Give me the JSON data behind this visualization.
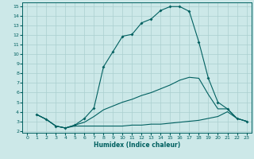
{
  "xlabel": "Humidex (Indice chaleur)",
  "bg_color": "#cce8e8",
  "grid_color": "#aacfcf",
  "line_color": "#006060",
  "xlim": [
    -0.5,
    23.5
  ],
  "ylim": [
    1.8,
    15.4
  ],
  "xticks": [
    0,
    1,
    2,
    3,
    4,
    5,
    6,
    7,
    8,
    9,
    10,
    11,
    12,
    13,
    14,
    15,
    16,
    17,
    18,
    19,
    20,
    21,
    22,
    23
  ],
  "yticks": [
    2,
    3,
    4,
    5,
    6,
    7,
    8,
    9,
    10,
    11,
    12,
    13,
    14,
    15
  ],
  "line1_x": [
    1,
    2,
    3,
    4,
    5,
    6,
    7,
    8,
    9,
    10,
    11,
    12,
    13,
    14,
    15,
    16,
    17,
    18,
    19,
    20,
    21,
    22,
    23
  ],
  "line1_y": [
    3.7,
    3.2,
    2.5,
    2.3,
    2.6,
    3.3,
    4.4,
    8.7,
    10.3,
    11.9,
    12.1,
    13.3,
    13.7,
    14.6,
    15.0,
    15.0,
    14.5,
    11.3,
    7.5,
    5.0,
    4.3,
    3.3,
    3.0
  ],
  "line2_x": [
    1,
    2,
    3,
    4,
    5,
    6,
    7,
    8,
    9,
    10,
    11,
    12,
    13,
    14,
    15,
    16,
    17,
    18,
    19,
    20,
    21,
    22,
    23
  ],
  "line2_y": [
    3.7,
    3.2,
    2.5,
    2.3,
    2.5,
    2.5,
    2.5,
    2.5,
    2.5,
    2.5,
    2.6,
    2.6,
    2.7,
    2.7,
    2.8,
    2.9,
    3.0,
    3.1,
    3.3,
    3.5,
    4.0,
    3.3,
    3.0
  ],
  "line3_x": [
    1,
    2,
    3,
    4,
    5,
    6,
    7,
    8,
    9,
    10,
    11,
    12,
    13,
    14,
    15,
    16,
    17,
    18,
    19,
    20,
    21,
    22,
    23
  ],
  "line3_y": [
    3.7,
    3.2,
    2.5,
    2.3,
    2.6,
    2.9,
    3.5,
    4.2,
    4.6,
    5.0,
    5.3,
    5.7,
    6.0,
    6.4,
    6.8,
    7.3,
    7.6,
    7.5,
    5.8,
    4.3,
    4.3,
    3.3,
    3.0
  ]
}
